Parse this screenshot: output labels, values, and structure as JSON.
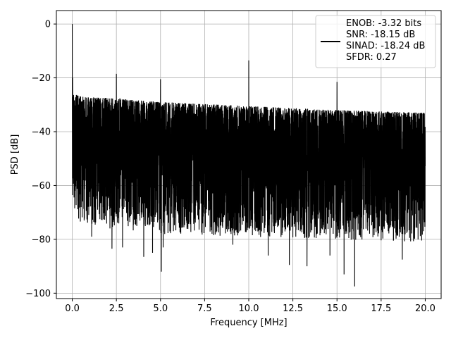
{
  "chart_data": {
    "type": "line",
    "title": "",
    "xlabel": "Frequency [MHz]",
    "ylabel": "PSD [dB]",
    "xlim": [
      -0.9,
      20.9
    ],
    "ylim": [
      -102,
      5
    ],
    "xticks": [
      0.0,
      2.5,
      5.0,
      7.5,
      10.0,
      12.5,
      15.0,
      17.5,
      20.0
    ],
    "xtick_labels": [
      "0.0",
      "2.5",
      "5.0",
      "7.5",
      "10.0",
      "12.5",
      "15.0",
      "17.5",
      "20.0"
    ],
    "yticks": [
      0,
      -20,
      -40,
      -60,
      -80,
      -100
    ],
    "ytick_labels": [
      "0",
      "−20",
      "−40",
      "−60",
      "−80",
      "−100"
    ],
    "grid": true,
    "legend_position": "top-right",
    "series": [
      {
        "color": "#000000",
        "noise_floor": {
          "x": [
            0.0,
            0.1,
            0.5,
            2.0,
            5.0,
            10.0,
            15.0,
            20.0
          ],
          "upper": [
            -22,
            -26,
            -27,
            -27.5,
            -29,
            -30.5,
            -32,
            -33
          ],
          "lower": [
            -63,
            -70,
            -74,
            -76,
            -78,
            -79,
            -80,
            -81
          ]
        },
        "peaks": [
          {
            "x": 0.0,
            "y": 0
          },
          {
            "x": 0.02,
            "y": -20
          },
          {
            "x": 2.5,
            "y": -18.5
          },
          {
            "x": 5.0,
            "y": -20.5
          },
          {
            "x": 10.0,
            "y": -13.5
          },
          {
            "x": 15.0,
            "y": -21.5
          }
        ],
        "dips": [
          {
            "x": 1.1,
            "y": -79
          },
          {
            "x": 2.25,
            "y": -83.5
          },
          {
            "x": 2.85,
            "y": -83
          },
          {
            "x": 4.05,
            "y": -86.5
          },
          {
            "x": 4.55,
            "y": -85
          },
          {
            "x": 5.05,
            "y": -92
          },
          {
            "x": 5.15,
            "y": -83
          },
          {
            "x": 9.1,
            "y": -82
          },
          {
            "x": 11.1,
            "y": -86
          },
          {
            "x": 12.3,
            "y": -89.5
          },
          {
            "x": 13.3,
            "y": -90
          },
          {
            "x": 14.6,
            "y": -86
          },
          {
            "x": 15.4,
            "y": -93
          },
          {
            "x": 16.0,
            "y": -97.5
          },
          {
            "x": 18.7,
            "y": -87.5
          }
        ]
      }
    ],
    "legend": {
      "lines": [
        "ENOB: -3.32 bits",
        "SNR: -18.15 dB",
        "SINAD: -18.24 dB",
        "SFDR: 0.27"
      ]
    }
  }
}
